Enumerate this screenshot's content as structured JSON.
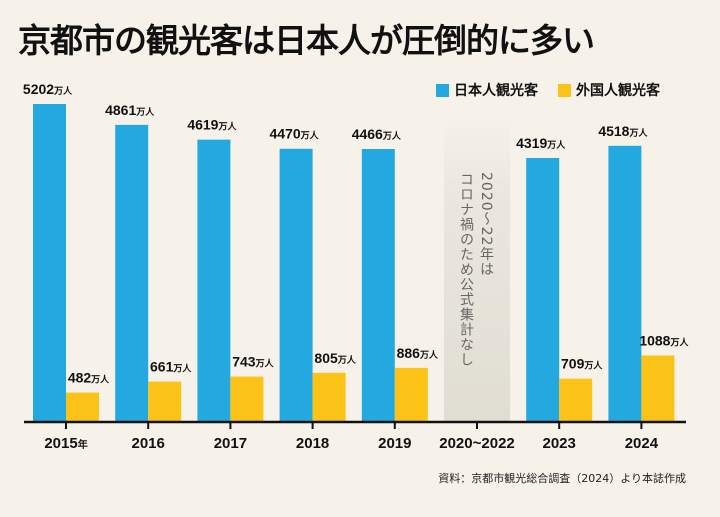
{
  "title": "京都市の観光客は日本人が圧倒的に多い",
  "legend": {
    "japanese": "日本人観光客",
    "foreign": "外国人観光客"
  },
  "source": "資料：京都市観光総合調査（2024）より本誌作成",
  "note_lines": [
    "2020～22年は",
    "コロナ禍のため公式集計なし"
  ],
  "chart_data": {
    "type": "bar",
    "unit": "万人",
    "year_suffix": "年",
    "categories": [
      "2015",
      "2016",
      "2017",
      "2018",
      "2019",
      "2020~2022",
      "2023",
      "2024"
    ],
    "series": [
      {
        "name": "日本人観光客",
        "color": "#24a8e0",
        "values": [
          5202,
          4861,
          4619,
          4470,
          4466,
          null,
          4319,
          4518
        ]
      },
      {
        "name": "外国人観光客",
        "color": "#fbc317",
        "values": [
          482,
          661,
          743,
          805,
          886,
          null,
          709,
          1088
        ]
      }
    ],
    "ylim": [
      0,
      5202
    ],
    "grid": false,
    "legend_position": "top-right"
  }
}
